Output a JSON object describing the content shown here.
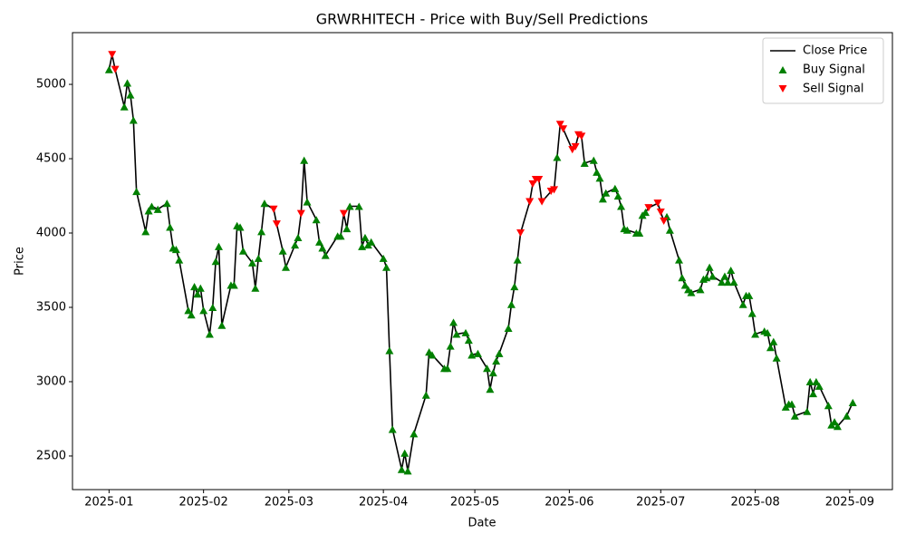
{
  "chart_data": {
    "type": "line",
    "title": "GRWRHITECH - Price with Buy/Sell Predictions",
    "x_label": "Date",
    "y_label": "Price",
    "xlim": [
      -12,
      257
    ],
    "xticks": [
      {
        "value": 0,
        "label": "2025-01"
      },
      {
        "value": 31,
        "label": "2025-02"
      },
      {
        "value": 59,
        "label": "2025-03"
      },
      {
        "value": 90,
        "label": "2025-04"
      },
      {
        "value": 120,
        "label": "2025-05"
      },
      {
        "value": 151,
        "label": "2025-06"
      },
      {
        "value": 181,
        "label": "2025-07"
      },
      {
        "value": 212,
        "label": "2025-08"
      },
      {
        "value": 243,
        "label": "2025-09"
      }
    ],
    "ylim": [
      2274,
      5348
    ],
    "yticks": [
      2500,
      3000,
      3500,
      4000,
      4500,
      5000
    ],
    "legend": "upper right",
    "series": [
      {
        "name": "Close Price",
        "type": "line",
        "color": "#000000",
        "x": [
          0,
          1,
          2,
          5,
          6,
          7,
          8,
          9,
          12,
          13,
          14,
          16,
          19,
          20,
          21,
          22,
          23,
          26,
          27,
          28,
          29,
          30,
          31,
          33,
          34,
          35,
          36,
          37,
          40,
          41,
          42,
          43,
          44,
          47,
          48,
          49,
          50,
          51,
          54,
          55,
          57,
          58,
          61,
          62,
          63,
          64,
          65,
          68,
          69,
          70,
          71,
          75,
          76,
          77,
          78,
          79,
          82,
          83,
          84,
          85,
          86,
          90,
          91,
          92,
          93,
          96,
          97,
          98,
          100,
          104,
          105,
          106,
          110,
          111,
          112,
          113,
          114,
          117,
          118,
          119,
          121,
          124,
          125,
          126,
          127,
          128,
          131,
          132,
          133,
          134,
          135,
          138,
          139,
          140,
          141,
          142,
          145,
          146,
          147,
          148,
          149,
          152,
          153,
          154,
          155,
          156,
          159,
          160,
          161,
          162,
          163,
          166,
          167,
          168,
          169,
          170,
          173,
          174,
          175,
          176,
          177,
          180,
          181,
          182,
          183,
          184,
          187,
          188,
          189,
          190,
          191,
          194,
          195,
          196,
          197,
          198,
          201,
          202,
          203,
          204,
          205,
          208,
          209,
          210,
          211,
          212,
          215,
          216,
          217,
          218,
          219,
          222,
          223,
          224,
          225,
          229,
          230,
          231,
          232,
          233,
          236,
          237,
          238,
          239,
          242,
          244
        ],
        "values": [
          5100,
          5200,
          5100,
          4850,
          5010,
          4930,
          4760,
          4280,
          4010,
          4150,
          4180,
          4160,
          4200,
          4040,
          3900,
          3890,
          3820,
          3480,
          3450,
          3640,
          3590,
          3630,
          3480,
          3320,
          3500,
          3810,
          3910,
          3380,
          3650,
          3650,
          4050,
          4040,
          3880,
          3800,
          3630,
          3830,
          4010,
          4200,
          4160,
          4060,
          3880,
          3770,
          3920,
          3970,
          4130,
          4490,
          4210,
          4090,
          3940,
          3900,
          3850,
          3980,
          3980,
          4130,
          4030,
          4180,
          4180,
          3910,
          3970,
          3920,
          3940,
          3830,
          3770,
          3210,
          2680,
          2410,
          2520,
          2400,
          2650,
          2910,
          3200,
          3180,
          3090,
          3090,
          3240,
          3400,
          3320,
          3330,
          3280,
          3180,
          3190,
          3090,
          2950,
          3060,
          3140,
          3190,
          3360,
          3520,
          3640,
          3820,
          4000,
          4210,
          4330,
          4360,
          4360,
          4210,
          4280,
          4290,
          4510,
          4730,
          4700,
          4560,
          4580,
          4660,
          4650,
          4470,
          4490,
          4410,
          4370,
          4230,
          4270,
          4300,
          4250,
          4180,
          4030,
          4020,
          4000,
          4000,
          4120,
          4140,
          4170,
          4200,
          4140,
          4080,
          4110,
          4020,
          3820,
          3700,
          3650,
          3620,
          3600,
          3620,
          3690,
          3700,
          3770,
          3710,
          3670,
          3710,
          3670,
          3750,
          3670,
          3520,
          3580,
          3580,
          3460,
          3320,
          3340,
          3330,
          3230,
          3270,
          3160,
          2830,
          2850,
          2850,
          2770,
          2800,
          3000,
          2920,
          3000,
          2970,
          2840,
          2710,
          2730,
          2700,
          2770,
          2860
        ]
      },
      {
        "name": "Buy Signal",
        "type": "scatter",
        "marker": "^",
        "color": "#008000",
        "x": [
          0,
          5,
          6,
          7,
          8,
          9,
          12,
          13,
          14,
          16,
          19,
          20,
          21,
          22,
          23,
          26,
          27,
          28,
          29,
          30,
          31,
          33,
          34,
          35,
          36,
          37,
          40,
          41,
          42,
          43,
          44,
          47,
          48,
          49,
          50,
          51,
          57,
          58,
          61,
          62,
          64,
          65,
          68,
          69,
          70,
          71,
          75,
          76,
          78,
          79,
          82,
          83,
          84,
          85,
          86,
          90,
          91,
          92,
          93,
          96,
          97,
          98,
          100,
          104,
          105,
          106,
          110,
          111,
          112,
          113,
          114,
          117,
          118,
          119,
          121,
          124,
          125,
          126,
          127,
          128,
          131,
          132,
          133,
          134,
          147,
          156,
          159,
          160,
          161,
          162,
          163,
          166,
          167,
          168,
          169,
          170,
          173,
          174,
          175,
          176,
          183,
          184,
          187,
          188,
          189,
          190,
          191,
          194,
          195,
          196,
          197,
          198,
          201,
          202,
          203,
          204,
          205,
          208,
          209,
          210,
          211,
          212,
          215,
          216,
          217,
          218,
          219,
          222,
          223,
          224,
          225,
          229,
          230,
          231,
          232,
          233,
          236,
          237,
          238,
          239,
          242,
          244
        ],
        "values": [
          5100,
          4850,
          5010,
          4930,
          4760,
          4280,
          4010,
          4150,
          4180,
          4160,
          4200,
          4040,
          3900,
          3890,
          3820,
          3480,
          3450,
          3640,
          3590,
          3630,
          3480,
          3320,
          3500,
          3810,
          3910,
          3380,
          3650,
          3650,
          4050,
          4040,
          3880,
          3800,
          3630,
          3830,
          4010,
          4200,
          3880,
          3770,
          3920,
          3970,
          4490,
          4210,
          4090,
          3940,
          3900,
          3850,
          3980,
          3980,
          4030,
          4180,
          4180,
          3910,
          3970,
          3920,
          3940,
          3830,
          3770,
          3210,
          2680,
          2410,
          2520,
          2400,
          2650,
          2910,
          3200,
          3180,
          3090,
          3090,
          3240,
          3400,
          3320,
          3330,
          3280,
          3180,
          3190,
          3090,
          2950,
          3060,
          3140,
          3190,
          3360,
          3520,
          3640,
          3820,
          4510,
          4470,
          4490,
          4410,
          4370,
          4230,
          4270,
          4300,
          4250,
          4180,
          4030,
          4020,
          4000,
          4000,
          4120,
          4140,
          4110,
          4020,
          3820,
          3700,
          3650,
          3620,
          3600,
          3620,
          3690,
          3700,
          3770,
          3710,
          3670,
          3710,
          3670,
          3750,
          3670,
          3520,
          3580,
          3580,
          3460,
          3320,
          3340,
          3330,
          3230,
          3270,
          3160,
          2830,
          2850,
          2850,
          2770,
          2800,
          3000,
          2920,
          3000,
          2970,
          2840,
          2710,
          2730,
          2700,
          2770,
          2860
        ]
      },
      {
        "name": "Sell Signal",
        "type": "scatter",
        "marker": "v",
        "color": "#ff0000",
        "x": [
          1,
          2,
          54,
          55,
          63,
          77,
          135,
          138,
          139,
          140,
          141,
          142,
          145,
          146,
          148,
          149,
          152,
          153,
          154,
          155,
          177,
          180,
          181,
          182
        ],
        "values": [
          5200,
          5100,
          4160,
          4060,
          4130,
          4130,
          4000,
          4210,
          4330,
          4360,
          4360,
          4210,
          4280,
          4290,
          4730,
          4700,
          4560,
          4580,
          4660,
          4650,
          4170,
          4200,
          4140,
          4080
        ]
      }
    ]
  }
}
